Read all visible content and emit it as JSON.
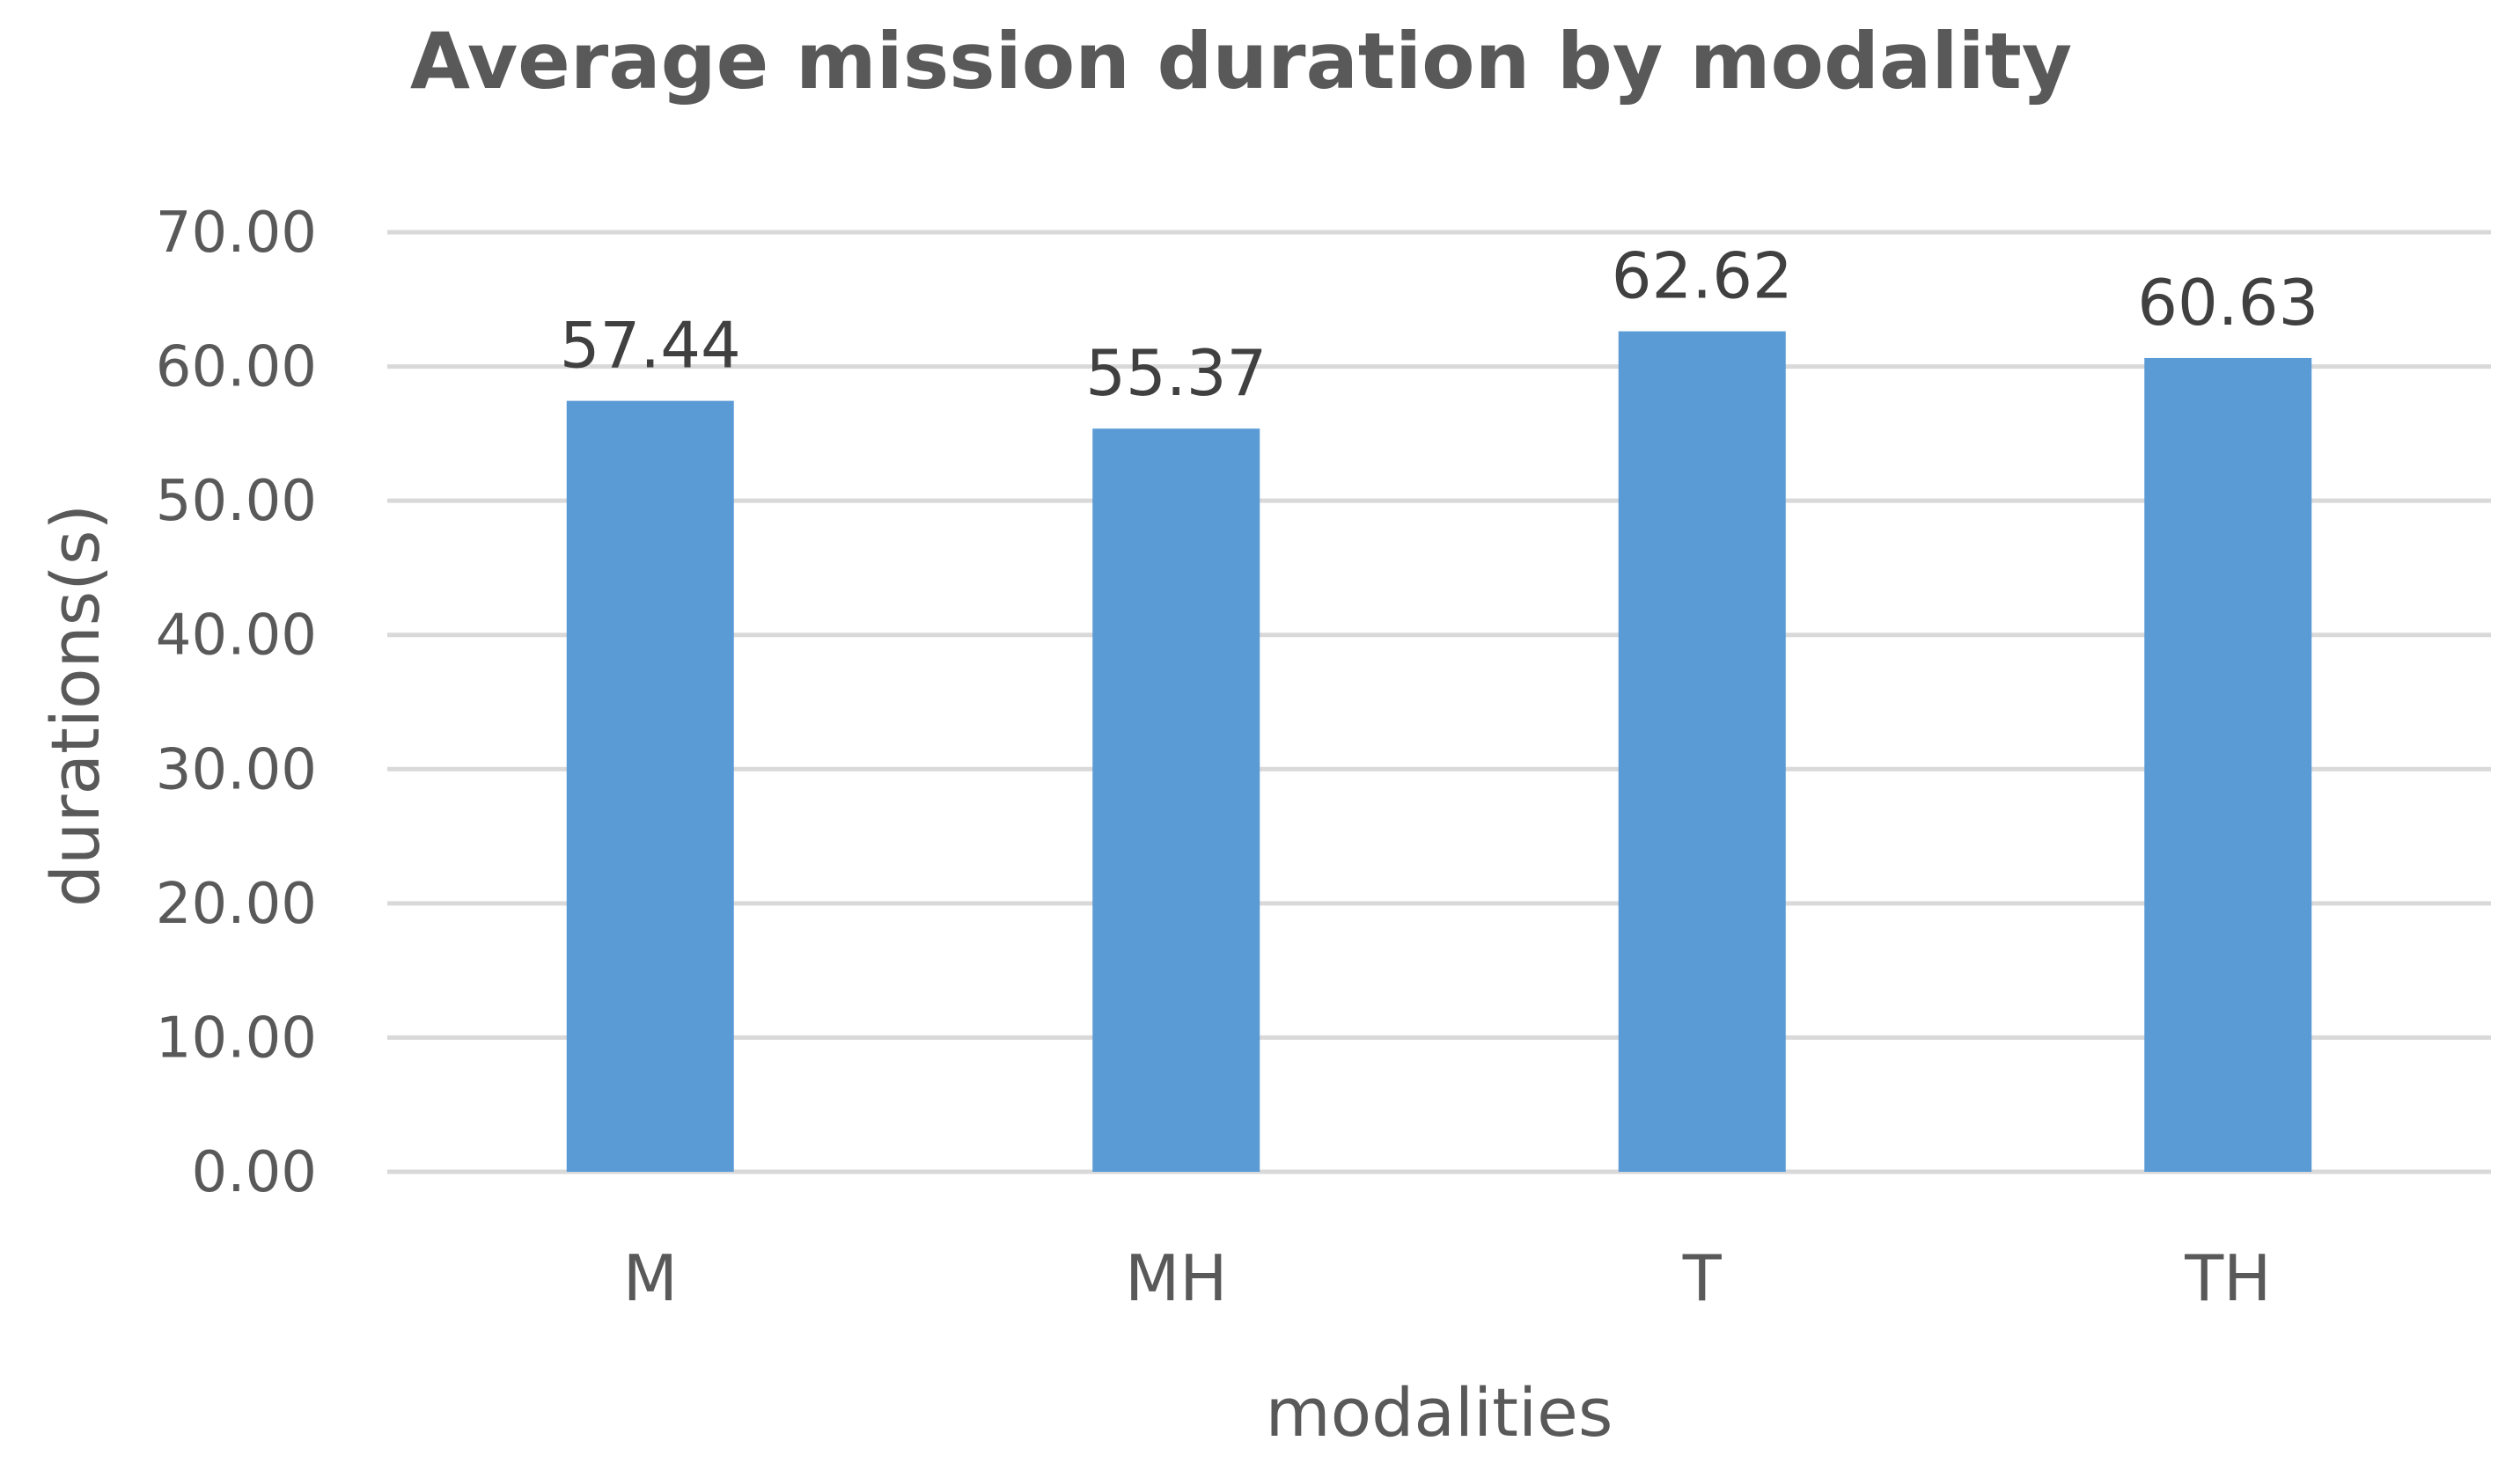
{
  "chart_data": {
    "type": "bar",
    "title": "Average mission duration by modality",
    "xlabel": "modalities",
    "ylabel": "durations(s)",
    "categories": [
      "M",
      "MH",
      "T",
      "TH"
    ],
    "values": [
      57.44,
      55.37,
      62.62,
      60.63
    ],
    "value_labels": [
      "57.44",
      "55.37",
      "62.62",
      "60.63"
    ],
    "ylim": [
      0,
      70
    ],
    "yticks": [
      0,
      10,
      20,
      30,
      40,
      50,
      60,
      70
    ],
    "ytick_labels": [
      "0.00",
      "10.00",
      "20.00",
      "30.00",
      "40.00",
      "50.00",
      "60.00",
      "70.00"
    ],
    "grid": true,
    "legend": "none",
    "colors": {
      "bar": "#5B9BD5",
      "grid": "#D9D9D9",
      "text": "#595959",
      "data_label": "#404040"
    }
  }
}
